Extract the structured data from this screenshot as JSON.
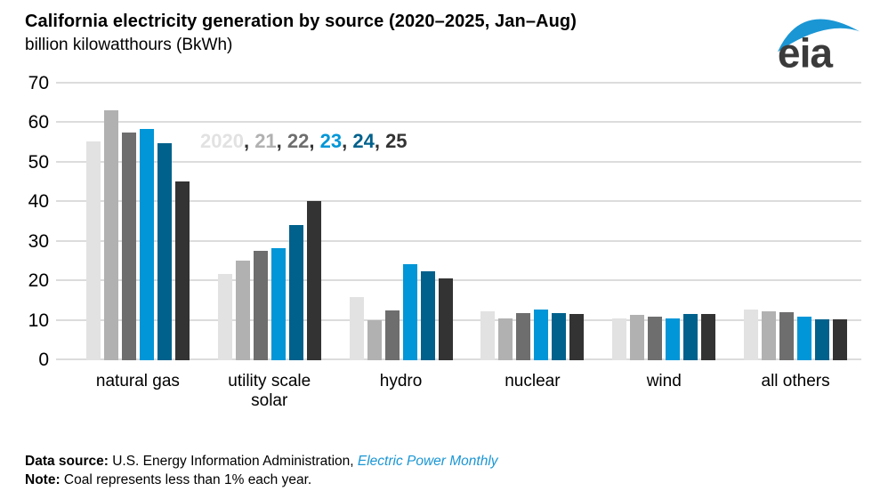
{
  "header": {
    "title": "California electricity generation by source (2020–2025, Jan–Aug)",
    "subtitle": "billion kilowatthours (BkWh)",
    "logo_text": "eia"
  },
  "colors": {
    "brand_blue": "#0096d7",
    "dark_blue": "#00618c",
    "charcoal": "#333333",
    "light_gray": "#e2e2e2",
    "mid_gray": "#b1b1b1",
    "dark_gray": "#6e6e6e",
    "gridline": "#dcdcdc",
    "link_blue": "#1a96d4"
  },
  "legend": {
    "separator": ", ",
    "items": [
      {
        "label": "2020",
        "color": "#e2e2e2"
      },
      {
        "label": "21",
        "color": "#b1b1b1"
      },
      {
        "label": "22",
        "color": "#6e6e6e"
      },
      {
        "label": "23",
        "color": "#0096d7"
      },
      {
        "label": "24",
        "color": "#00618c"
      },
      {
        "label": "25",
        "color": "#333333"
      }
    ]
  },
  "chart_data": {
    "type": "bar",
    "title": "California electricity generation by source (2020–2025, Jan–Aug)",
    "ylabel": "billion kilowatthours (BkWh)",
    "xlabel": "",
    "ylim": [
      0,
      70
    ],
    "yticks": [
      0,
      10,
      20,
      30,
      40,
      50,
      60,
      70
    ],
    "grid": true,
    "legend_position": "inside-top-left",
    "categories": [
      "natural gas",
      "utility scale solar",
      "hydro",
      "nuclear",
      "wind",
      "all others"
    ],
    "series": [
      {
        "name": "2020",
        "color": "#e2e2e2",
        "values": [
          55.4,
          21.8,
          16.1,
          12.4,
          10.5,
          12.9
        ]
      },
      {
        "name": "21",
        "color": "#b1b1b1",
        "values": [
          63.2,
          25.3,
          10.2,
          10.5,
          11.6,
          12.3
        ]
      },
      {
        "name": "22",
        "color": "#6e6e6e",
        "values": [
          57.6,
          27.7,
          12.6,
          12.0,
          11.0,
          12.1
        ]
      },
      {
        "name": "23",
        "color": "#0096d7",
        "values": [
          58.5,
          28.4,
          24.3,
          12.8,
          10.5,
          11.0
        ]
      },
      {
        "name": "24",
        "color": "#00618c",
        "values": [
          55.0,
          34.2,
          22.5,
          12.0,
          11.8,
          10.4
        ]
      },
      {
        "name": "25",
        "color": "#333333",
        "values": [
          45.3,
          40.2,
          20.7,
          11.8,
          11.8,
          10.3
        ]
      }
    ]
  },
  "footer": {
    "source_label": "Data source:",
    "source_text": " U.S. Energy Information Administration, ",
    "source_link": "Electric Power Monthly",
    "note_label": "Note:",
    "note_text": " Coal represents less than 1% each year."
  }
}
